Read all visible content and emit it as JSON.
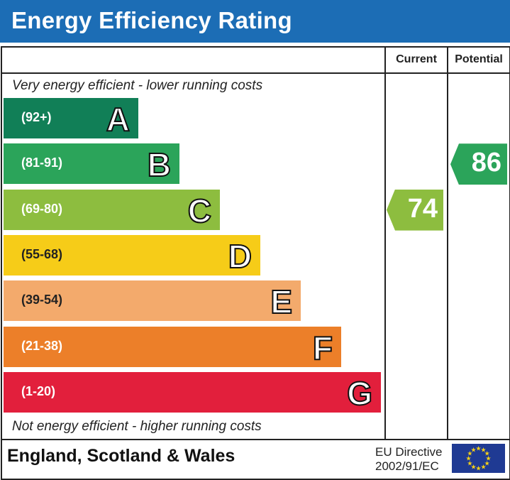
{
  "title": "Energy Efficiency Rating",
  "columns": {
    "current": "Current",
    "potential": "Potential"
  },
  "top_note": "Very energy efficient - lower running costs",
  "bottom_note": "Not energy efficient - higher running costs",
  "footer": {
    "region": "England, Scotland & Wales",
    "directive_line1": "EU Directive",
    "directive_line2": "2002/91/EC",
    "flag_icon": "eu-flag-icon"
  },
  "chart_data": {
    "type": "bar",
    "title": "Energy Efficiency Rating",
    "bands": [
      {
        "letter": "A",
        "range": "(92+)",
        "color": "#117f57"
      },
      {
        "letter": "B",
        "range": "(81-91)",
        "color": "#2ba45a"
      },
      {
        "letter": "C",
        "range": "(69-80)",
        "color": "#8dbd3f"
      },
      {
        "letter": "D",
        "range": "(55-68)",
        "color": "#f6cc18"
      },
      {
        "letter": "E",
        "range": "(39-54)",
        "color": "#f3aa6c"
      },
      {
        "letter": "F",
        "range": "(21-38)",
        "color": "#ec7f29"
      },
      {
        "letter": "G",
        "range": "(1-20)",
        "color": "#e21f3c"
      }
    ],
    "current": {
      "value": 74,
      "band": "C",
      "color": "#8dbd3f"
    },
    "potential": {
      "value": 86,
      "band": "B",
      "color": "#2ba45a"
    }
  }
}
